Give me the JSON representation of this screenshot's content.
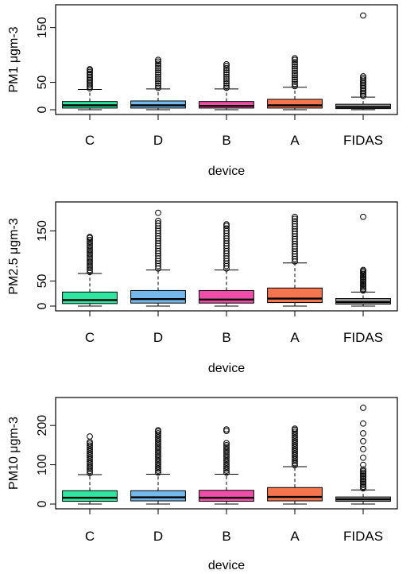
{
  "chart_data": [
    {
      "type": "box",
      "ylabel": "PM1 μgm-3",
      "xlabel": "device",
      "ylim": [
        0,
        180
      ],
      "yticks": [
        0,
        50,
        150
      ],
      "categories": [
        "C",
        "D",
        "B",
        "A",
        "FIDAS"
      ],
      "colors": [
        "#2ee6a0",
        "#74b8ec",
        "#ee4ea8",
        "#f4754e",
        "#9a9a9a"
      ],
      "boxes": [
        {
          "min": 0,
          "q1": 3,
          "median": 8,
          "q3": 15,
          "max": 37,
          "outliers": [
            39,
            42,
            45,
            48,
            51,
            54,
            57,
            60,
            63,
            66,
            69,
            72,
            74
          ]
        },
        {
          "min": 0,
          "q1": 3,
          "median": 8,
          "q3": 16,
          "max": 38,
          "outliers": [
            40,
            44,
            48,
            52,
            56,
            60,
            64,
            68,
            72,
            76,
            80,
            84,
            88,
            91
          ]
        },
        {
          "min": 0,
          "q1": 3,
          "median": 7,
          "q3": 15,
          "max": 38,
          "outliers": [
            40,
            44,
            48,
            52,
            56,
            60,
            64,
            68,
            72,
            76,
            80,
            83
          ]
        },
        {
          "min": 0,
          "q1": 3,
          "median": 8,
          "q3": 19,
          "max": 41,
          "outliers": [
            43,
            47,
            51,
            55,
            59,
            63,
            67,
            71,
            75,
            79,
            83,
            87,
            91,
            94
          ]
        },
        {
          "min": 0,
          "q1": 2,
          "median": 5,
          "q3": 10,
          "max": 23,
          "outliers": [
            25,
            28,
            31,
            34,
            37,
            40,
            43,
            46,
            49,
            52,
            55,
            58,
            61,
            172
          ]
        }
      ]
    },
    {
      "type": "box",
      "ylabel": "PM2.5 μgm-3",
      "xlabel": "device",
      "ylim": [
        0,
        195
      ],
      "yticks": [
        0,
        50,
        150
      ],
      "categories": [
        "C",
        "D",
        "B",
        "A",
        "FIDAS"
      ],
      "colors": [
        "#2ee6a0",
        "#74b8ec",
        "#ee4ea8",
        "#f4754e",
        "#9a9a9a"
      ],
      "boxes": [
        {
          "min": 0,
          "q1": 5,
          "median": 12,
          "q3": 28,
          "max": 65,
          "outliers": [
            68,
            72,
            76,
            80,
            84,
            88,
            92,
            96,
            100,
            104,
            108,
            112,
            116,
            120,
            124,
            128,
            132,
            136,
            138
          ]
        },
        {
          "min": 0,
          "q1": 6,
          "median": 14,
          "q3": 31,
          "max": 72,
          "outliers": [
            75,
            80,
            85,
            90,
            95,
            100,
            105,
            110,
            115,
            120,
            125,
            130,
            135,
            140,
            145,
            150,
            155,
            160,
            165,
            170,
            186
          ]
        },
        {
          "min": 0,
          "q1": 6,
          "median": 13,
          "q3": 31,
          "max": 72,
          "outliers": [
            75,
            80,
            85,
            90,
            95,
            100,
            105,
            110,
            115,
            120,
            125,
            130,
            135,
            140,
            145,
            150,
            155,
            160,
            163
          ]
        },
        {
          "min": 0,
          "q1": 7,
          "median": 15,
          "q3": 36,
          "max": 86,
          "outliers": [
            89,
            94,
            99,
            104,
            109,
            114,
            119,
            124,
            129,
            134,
            139,
            144,
            149,
            154,
            159,
            164,
            169,
            174,
            178
          ]
        },
        {
          "min": 0,
          "q1": 4,
          "median": 8,
          "q3": 15,
          "max": 28,
          "outliers": [
            31,
            34,
            37,
            40,
            43,
            46,
            49,
            52,
            55,
            58,
            61,
            64,
            67,
            70,
            72,
            178
          ]
        }
      ]
    },
    {
      "type": "box",
      "ylabel": "PM10 μgm-3",
      "xlabel": "device",
      "ylim": [
        0,
        255
      ],
      "yticks": [
        0,
        100,
        200
      ],
      "categories": [
        "C",
        "D",
        "B",
        "A",
        "FIDAS"
      ],
      "colors": [
        "#2ee6a0",
        "#74b8ec",
        "#ee4ea8",
        "#f4754e",
        "#9a9a9a"
      ],
      "boxes": [
        {
          "min": 0,
          "q1": 7,
          "median": 16,
          "q3": 34,
          "max": 75,
          "outliers": [
            79,
            84,
            89,
            94,
            99,
            104,
            109,
            114,
            119,
            124,
            129,
            134,
            139,
            144,
            149,
            154,
            158,
            172
          ]
        },
        {
          "min": 0,
          "q1": 8,
          "median": 17,
          "q3": 34,
          "max": 76,
          "outliers": [
            80,
            85,
            90,
            95,
            100,
            105,
            110,
            115,
            120,
            125,
            130,
            135,
            140,
            145,
            150,
            155,
            160,
            165,
            170,
            175,
            180,
            185,
            188
          ]
        },
        {
          "min": 0,
          "q1": 7,
          "median": 16,
          "q3": 35,
          "max": 76,
          "outliers": [
            80,
            85,
            90,
            95,
            100,
            105,
            110,
            115,
            120,
            125,
            130,
            135,
            140,
            145,
            150,
            155,
            186,
            190
          ]
        },
        {
          "min": 0,
          "q1": 8,
          "median": 18,
          "q3": 42,
          "max": 95,
          "outliers": [
            99,
            104,
            109,
            114,
            119,
            124,
            129,
            134,
            139,
            144,
            149,
            154,
            159,
            164,
            169,
            174,
            179,
            184,
            189,
            192
          ]
        },
        {
          "min": 0,
          "q1": 7,
          "median": 12,
          "q3": 18,
          "max": 36,
          "outliers": [
            40,
            44,
            48,
            52,
            56,
            60,
            64,
            68,
            72,
            76,
            80,
            84,
            88,
            100,
            118,
            140,
            160,
            180,
            205,
            245
          ]
        }
      ]
    }
  ]
}
